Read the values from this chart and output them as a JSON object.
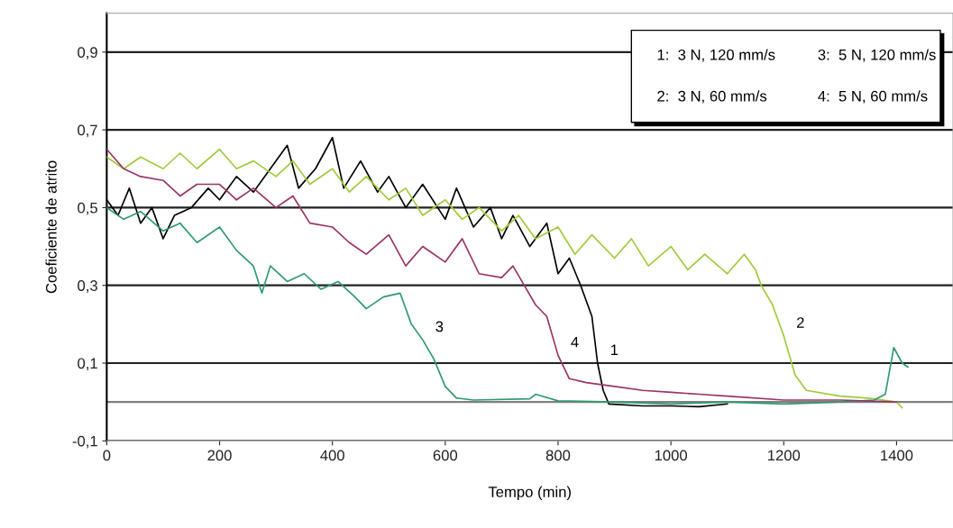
{
  "chart_data": {
    "type": "line",
    "xlabel": "Tempo (min)",
    "ylabel": "Coeficiente de atrito",
    "xlim": [
      0,
      1500
    ],
    "xticks": [
      0,
      200,
      400,
      600,
      800,
      1000,
      1200,
      1400
    ],
    "ylim": [
      -0.1,
      1.0
    ],
    "yticks": [
      {
        "value": -0.1,
        "label": "-0,1"
      },
      {
        "value": 0.1,
        "label": "0,1"
      },
      {
        "value": 0.3,
        "label": "0,3"
      },
      {
        "value": 0.5,
        "label": "0,5"
      },
      {
        "value": 0.7,
        "label": "0,7"
      },
      {
        "value": 0.9,
        "label": "0,9"
      }
    ],
    "grid": "y",
    "legend": false,
    "marker": "none",
    "line_style": "solid",
    "ref_lines": [
      {
        "axis": "y",
        "value": 0,
        "color": "#808080"
      }
    ],
    "annotations": [
      "1:  3 N, 120 mm/s",
      "3:  5 N, 120 mm/s",
      "2:  3 N, 60 mm/s",
      "4:  5 N, 60 mm/s"
    ],
    "series": [
      {
        "name": "1",
        "color": "#000000",
        "x": [
          0,
          20,
          40,
          60,
          80,
          100,
          120,
          150,
          180,
          200,
          230,
          260,
          290,
          320,
          340,
          370,
          400,
          420,
          450,
          480,
          500,
          530,
          560,
          600,
          620,
          650,
          680,
          700,
          720,
          750,
          780,
          800,
          820,
          840,
          860,
          870,
          880,
          890,
          950,
          1000,
          1050,
          1100
        ],
        "values": [
          0.52,
          0.48,
          0.55,
          0.46,
          0.5,
          0.42,
          0.48,
          0.5,
          0.55,
          0.52,
          0.58,
          0.54,
          0.6,
          0.66,
          0.55,
          0.6,
          0.68,
          0.55,
          0.62,
          0.54,
          0.58,
          0.5,
          0.56,
          0.47,
          0.55,
          0.45,
          0.5,
          0.42,
          0.48,
          0.4,
          0.46,
          0.33,
          0.37,
          0.3,
          0.22,
          0.1,
          0.03,
          -0.005,
          -0.01,
          -0.01,
          -0.012,
          -0.005
        ]
      },
      {
        "name": "2",
        "color": "#9fcb3a",
        "x": [
          0,
          30,
          60,
          100,
          130,
          160,
          200,
          230,
          260,
          300,
          330,
          360,
          400,
          430,
          460,
          500,
          530,
          560,
          600,
          630,
          660,
          700,
          730,
          760,
          800,
          830,
          860,
          900,
          930,
          960,
          1000,
          1030,
          1060,
          1100,
          1130,
          1150,
          1160,
          1180,
          1200,
          1220,
          1240,
          1300,
          1350,
          1400,
          1410
        ],
        "values": [
          0.63,
          0.6,
          0.63,
          0.6,
          0.64,
          0.6,
          0.65,
          0.6,
          0.62,
          0.58,
          0.62,
          0.56,
          0.6,
          0.54,
          0.58,
          0.52,
          0.55,
          0.48,
          0.52,
          0.47,
          0.5,
          0.44,
          0.48,
          0.42,
          0.45,
          0.38,
          0.43,
          0.37,
          0.42,
          0.35,
          0.4,
          0.34,
          0.38,
          0.33,
          0.38,
          0.34,
          0.3,
          0.25,
          0.17,
          0.07,
          0.03,
          0.015,
          0.01,
          0.0,
          -0.015
        ]
      },
      {
        "name": "3",
        "color": "#2e9a6e",
        "x": [
          0,
          30,
          60,
          100,
          130,
          160,
          200,
          230,
          260,
          275,
          290,
          320,
          350,
          380,
          410,
          440,
          460,
          490,
          520,
          540,
          560,
          580,
          600,
          620,
          650,
          750,
          760,
          800,
          900,
          1000,
          1100,
          1200,
          1300,
          1360,
          1380,
          1395,
          1410,
          1420
        ],
        "values": [
          0.5,
          0.47,
          0.49,
          0.44,
          0.46,
          0.41,
          0.45,
          0.39,
          0.35,
          0.28,
          0.35,
          0.31,
          0.33,
          0.29,
          0.31,
          0.27,
          0.24,
          0.27,
          0.28,
          0.2,
          0.16,
          0.11,
          0.04,
          0.01,
          0.005,
          0.008,
          0.02,
          0.003,
          0.0,
          -0.005,
          0.0,
          -0.005,
          0.0,
          0.005,
          0.02,
          0.14,
          0.1,
          0.09
        ]
      },
      {
        "name": "4",
        "color": "#993366",
        "x": [
          0,
          30,
          60,
          100,
          130,
          160,
          200,
          230,
          260,
          300,
          330,
          360,
          400,
          430,
          460,
          500,
          530,
          560,
          600,
          630,
          660,
          700,
          720,
          740,
          760,
          780,
          800,
          820,
          850,
          900,
          950,
          1000,
          1050,
          1100,
          1200,
          1300,
          1400
        ],
        "values": [
          0.65,
          0.6,
          0.58,
          0.57,
          0.53,
          0.56,
          0.56,
          0.52,
          0.55,
          0.5,
          0.53,
          0.46,
          0.45,
          0.41,
          0.38,
          0.43,
          0.35,
          0.4,
          0.36,
          0.42,
          0.33,
          0.32,
          0.35,
          0.3,
          0.25,
          0.22,
          0.12,
          0.06,
          0.05,
          0.04,
          0.03,
          0.025,
          0.02,
          0.015,
          0.005,
          0.005,
          0.0
        ]
      }
    ]
  }
}
